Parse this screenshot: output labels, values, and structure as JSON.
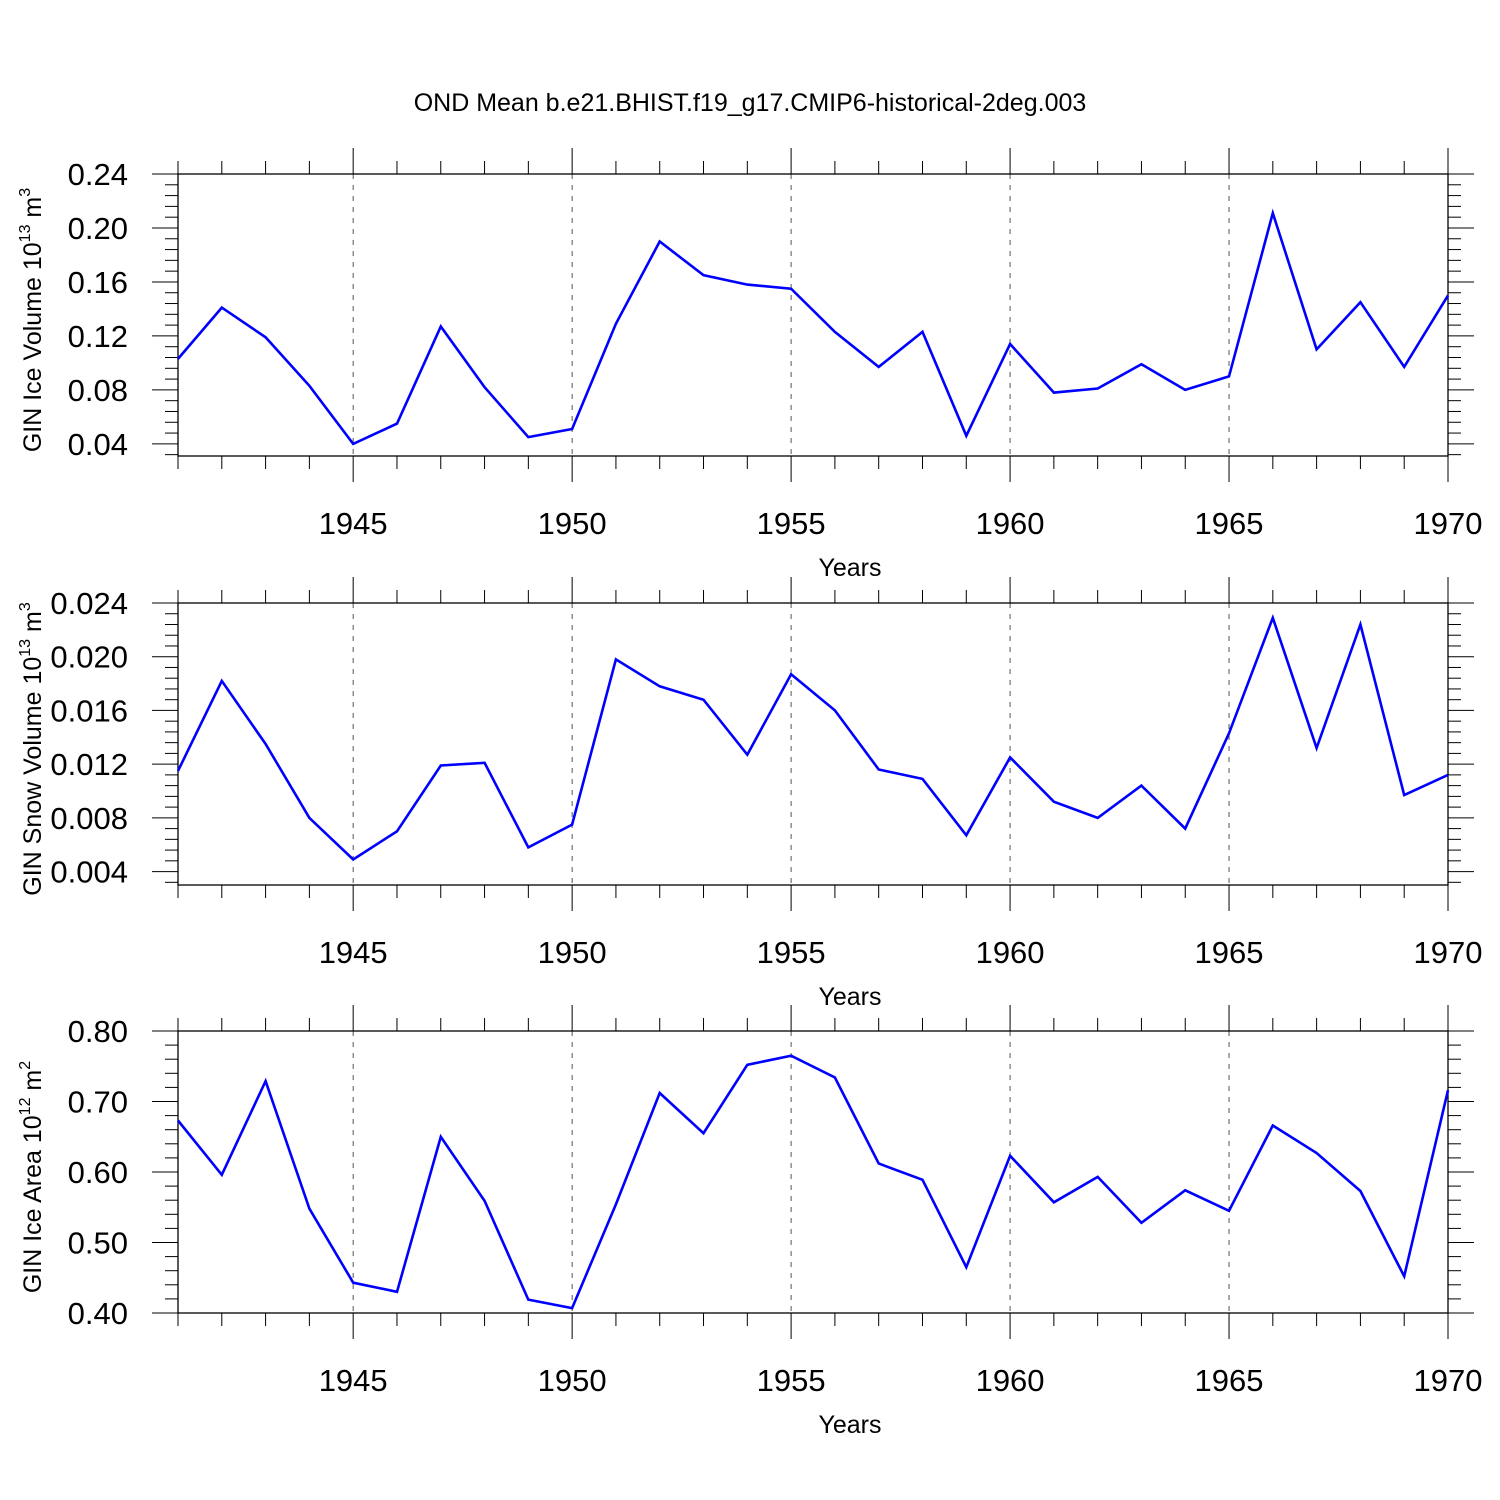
{
  "figure": {
    "title": "OND Mean b.e21.BHIST.f19_g17.CMIP6-historical-2deg.003"
  },
  "colors": {
    "line": "#0000ff",
    "axis": "#000000",
    "grid": "#555555"
  },
  "chart_data": [
    {
      "type": "line",
      "xlabel": "Years",
      "ylabel_prefix": "GIN Ice Volume 10",
      "ylabel_exp": "13",
      "ylabel_unit": " m",
      "ylabel_unit_exp": "3",
      "xlim": [
        1941,
        1970
      ],
      "ylim": [
        0.031,
        0.24
      ],
      "xticks": [
        1945,
        1950,
        1955,
        1960,
        1965,
        1970
      ],
      "yticks": [
        0.04,
        0.08,
        0.12,
        0.16,
        0.2,
        0.24
      ],
      "ytick_labels": [
        "0.04",
        "0.08",
        "0.12",
        "0.16",
        "0.20",
        "0.24"
      ],
      "x": [
        1941,
        1942,
        1943,
        1944,
        1945,
        1946,
        1947,
        1948,
        1949,
        1950,
        1951,
        1952,
        1953,
        1954,
        1955,
        1956,
        1957,
        1958,
        1959,
        1960,
        1961,
        1962,
        1963,
        1964,
        1965,
        1966,
        1967,
        1968,
        1969,
        1970
      ],
      "series": [
        {
          "values": [
            0.103,
            0.141,
            0.119,
            0.083,
            0.04,
            0.055,
            0.127,
            0.082,
            0.045,
            0.051,
            0.129,
            0.19,
            0.165,
            0.158,
            0.155,
            0.123,
            0.097,
            0.123,
            0.046,
            0.114,
            0.078,
            0.081,
            0.099,
            0.08,
            0.09,
            0.211,
            0.11,
            0.145,
            0.097,
            0.15
          ]
        }
      ],
      "grid": "dashed vertical at major x ticks"
    },
    {
      "type": "line",
      "xlabel": "Years",
      "ylabel_prefix": "GIN Snow Volume 10",
      "ylabel_exp": "13",
      "ylabel_unit": " m",
      "ylabel_unit_exp": "3",
      "xlim": [
        1941,
        1970
      ],
      "ylim": [
        0.003,
        0.024
      ],
      "xticks": [
        1945,
        1950,
        1955,
        1960,
        1965,
        1970
      ],
      "yticks": [
        0.004,
        0.008,
        0.012,
        0.016,
        0.02,
        0.024
      ],
      "ytick_labels": [
        "0.004",
        "0.008",
        "0.012",
        "0.016",
        "0.020",
        "0.024"
      ],
      "x": [
        1941,
        1942,
        1943,
        1944,
        1945,
        1946,
        1947,
        1948,
        1949,
        1950,
        1951,
        1952,
        1953,
        1954,
        1955,
        1956,
        1957,
        1958,
        1959,
        1960,
        1961,
        1962,
        1963,
        1964,
        1965,
        1966,
        1967,
        1968,
        1969,
        1970
      ],
      "series": [
        {
          "values": [
            0.0115,
            0.0182,
            0.0135,
            0.008,
            0.0049,
            0.007,
            0.0119,
            0.0121,
            0.0058,
            0.0075,
            0.0198,
            0.0178,
            0.0168,
            0.0127,
            0.0187,
            0.016,
            0.0116,
            0.0109,
            0.0067,
            0.0125,
            0.0092,
            0.008,
            0.0104,
            0.0072,
            0.0143,
            0.0229,
            0.0132,
            0.0224,
            0.0097,
            0.0112
          ]
        }
      ],
      "grid": "dashed vertical at major x ticks"
    },
    {
      "type": "line",
      "xlabel": "Years",
      "ylabel_prefix": "GIN Ice Area 10",
      "ylabel_exp": "12",
      "ylabel_unit": " m",
      "ylabel_unit_exp": "2",
      "xlim": [
        1941,
        1970
      ],
      "ylim": [
        0.4,
        0.8
      ],
      "xticks": [
        1945,
        1950,
        1955,
        1960,
        1965,
        1970
      ],
      "yticks": [
        0.4,
        0.5,
        0.6,
        0.7,
        0.8
      ],
      "ytick_labels": [
        "0.40",
        "0.50",
        "0.60",
        "0.70",
        "0.80"
      ],
      "x": [
        1941,
        1942,
        1943,
        1944,
        1945,
        1946,
        1947,
        1948,
        1949,
        1950,
        1951,
        1952,
        1953,
        1954,
        1955,
        1956,
        1957,
        1958,
        1959,
        1960,
        1961,
        1962,
        1963,
        1964,
        1965,
        1966,
        1967,
        1968,
        1969,
        1970
      ],
      "series": [
        {
          "values": [
            0.673,
            0.596,
            0.729,
            0.548,
            0.443,
            0.43,
            0.65,
            0.559,
            0.419,
            0.407,
            0.554,
            0.712,
            0.655,
            0.752,
            0.765,
            0.734,
            0.612,
            0.589,
            0.465,
            0.623,
            0.557,
            0.593,
            0.528,
            0.574,
            0.545,
            0.666,
            0.627,
            0.573,
            0.452,
            0.716
          ]
        }
      ],
      "grid": "dashed vertical at major x ticks"
    }
  ]
}
